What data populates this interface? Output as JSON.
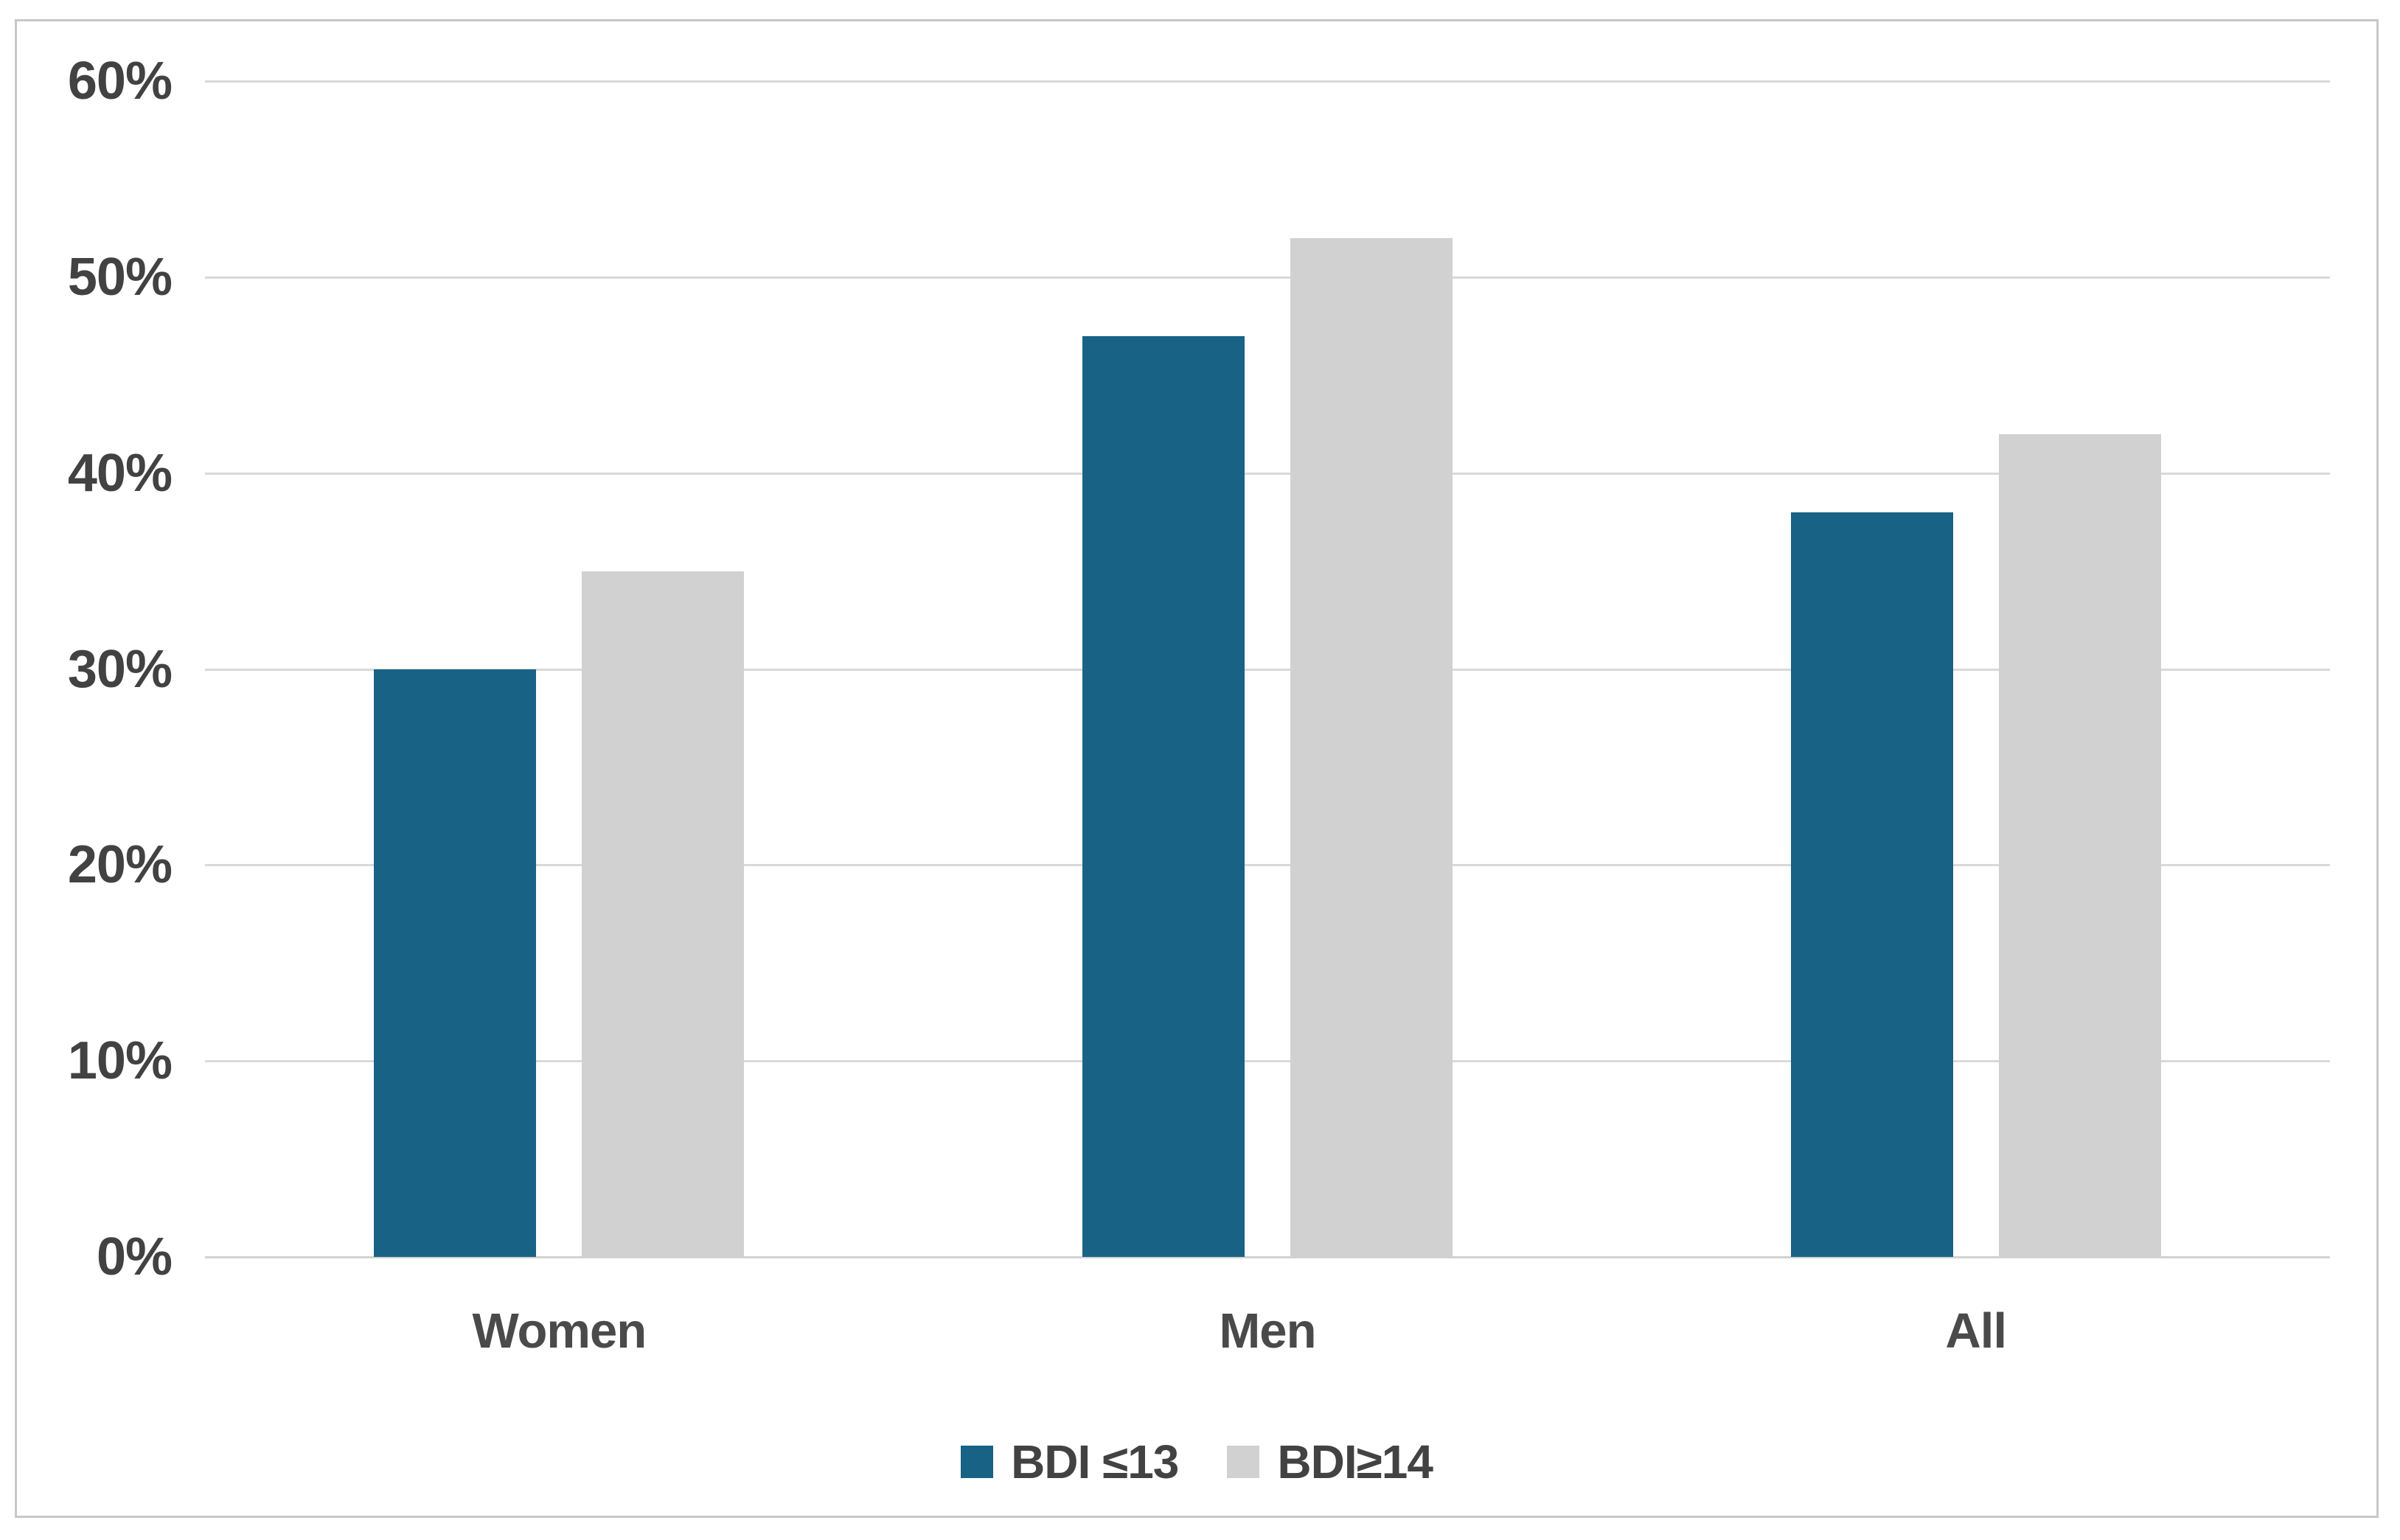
{
  "chart_data": {
    "type": "bar",
    "title": "",
    "xlabel": "",
    "ylabel": "",
    "categories": [
      "Women",
      "Men",
      "All"
    ],
    "series": [
      {
        "name": "BDI ≤13",
        "values": [
          30,
          47,
          38
        ],
        "color": "#186285"
      },
      {
        "name": "BDI≥14",
        "values": [
          35,
          52,
          42
        ],
        "color": "#d1d1d1"
      }
    ],
    "value_unit": "percent",
    "ylim": [
      0,
      60
    ],
    "yticks": [
      0,
      10,
      20,
      30,
      40,
      50,
      60
    ],
    "ytick_labels": [
      "0%",
      "10%",
      "20%",
      "30%",
      "40%",
      "50%",
      "60%"
    ],
    "grid": true,
    "legend_position": "bottom"
  },
  "colors": {
    "series1": "#186285",
    "series2": "#d1d1d1",
    "gridline": "#d9d9d9",
    "axis_line": "#d2d2d2",
    "frame_border": "#c8c8c8",
    "label_text": "#424242",
    "background": "#ffffff"
  }
}
